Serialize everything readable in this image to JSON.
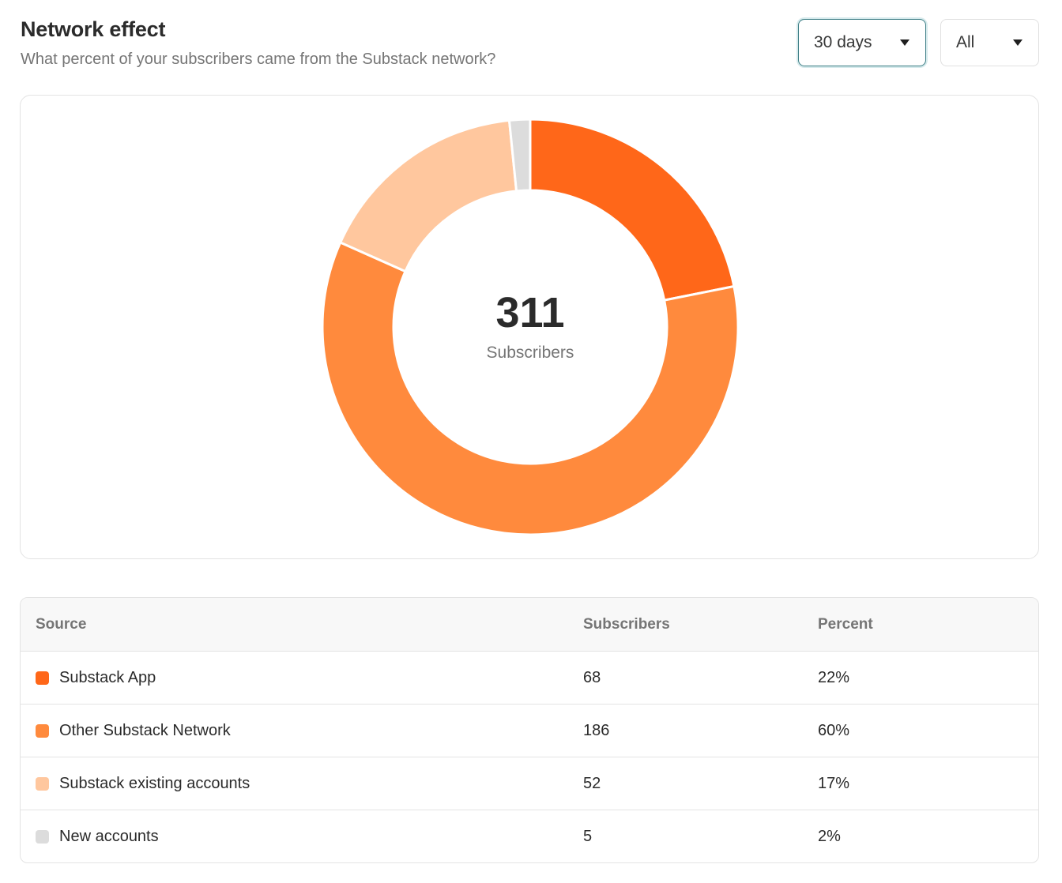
{
  "header": {
    "title": "Network effect",
    "subtitle": "What percent of your subscribers came from the Substack network?"
  },
  "filters": {
    "period": "30 days",
    "scope": "All"
  },
  "chart_data": {
    "type": "pie",
    "donut": true,
    "center_value": "311",
    "center_label": "Subscribers",
    "categories": [
      "Substack App",
      "Other Substack Network",
      "Substack existing accounts",
      "New accounts"
    ],
    "values": [
      68,
      186,
      52,
      5
    ],
    "colors": [
      "#ff6719",
      "#ff8a3d",
      "#ffc79e",
      "#dcdcdc"
    ]
  },
  "table": {
    "headers": [
      "Source",
      "Subscribers",
      "Percent"
    ],
    "rows": [
      {
        "source": "Substack App",
        "subscribers": "68",
        "percent": "22%",
        "color": "#ff6719"
      },
      {
        "source": "Other Substack Network",
        "subscribers": "186",
        "percent": "60%",
        "color": "#ff8a3d"
      },
      {
        "source": "Substack existing accounts",
        "subscribers": "52",
        "percent": "17%",
        "color": "#ffc79e"
      },
      {
        "source": "New accounts",
        "subscribers": "5",
        "percent": "2%",
        "color": "#dcdcdc"
      }
    ]
  }
}
